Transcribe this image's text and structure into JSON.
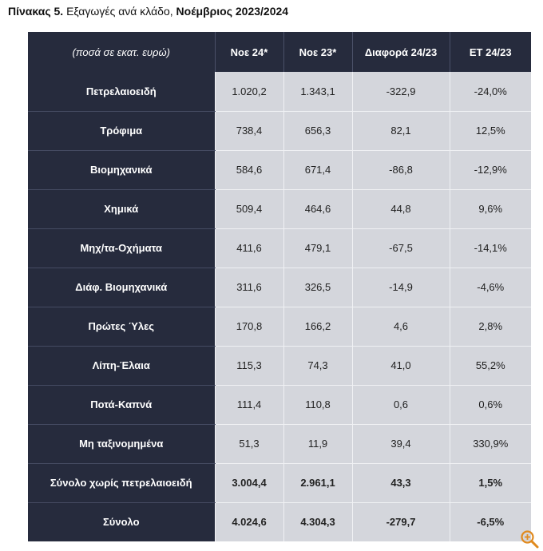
{
  "caption": {
    "prefix": "Πίνακας 5.",
    "text": " Εξαγωγές ανά κλάδο, ",
    "period": "Νοέμβριος 2023/2024"
  },
  "table": {
    "headers": [
      "(ποσά σε εκατ. ευρώ)",
      "Νοε 24*",
      "Νοε 23*",
      "Διαφορά 24/23",
      "ΕΤ 24/23"
    ],
    "rows": [
      {
        "label": "Πετρελαιοειδή",
        "cells": [
          "1.020,2",
          "1.343,1",
          "-322,9",
          "-24,0%"
        ]
      },
      {
        "label": "Τρόφιμα",
        "cells": [
          "738,4",
          "656,3",
          "82,1",
          "12,5%"
        ]
      },
      {
        "label": "Βιομηχανικά",
        "cells": [
          "584,6",
          "671,4",
          "-86,8",
          "-12,9%"
        ]
      },
      {
        "label": "Χημικά",
        "cells": [
          "509,4",
          "464,6",
          "44,8",
          "9,6%"
        ]
      },
      {
        "label": "Μηχ/τα-Οχήματα",
        "cells": [
          "411,6",
          "479,1",
          "-67,5",
          "-14,1%"
        ]
      },
      {
        "label": "Διάφ. Βιομηχανικά",
        "cells": [
          "311,6",
          "326,5",
          "-14,9",
          "-4,6%"
        ]
      },
      {
        "label": "Πρώτες Ύλες",
        "cells": [
          "170,8",
          "166,2",
          "4,6",
          "2,8%"
        ]
      },
      {
        "label": "Λίπη-Έλαια",
        "cells": [
          "115,3",
          "74,3",
          "41,0",
          "55,2%"
        ]
      },
      {
        "label": "Ποτά-Καπνά",
        "cells": [
          "111,4",
          "110,8",
          "0,6",
          "0,6%"
        ]
      },
      {
        "label": "Μη ταξινομημένα",
        "cells": [
          "51,3",
          "11,9",
          "39,4",
          "330,9%"
        ]
      },
      {
        "label": "Σύνολο χωρίς πετρελαιοειδή",
        "cells": [
          "3.004,4",
          "2.961,1",
          "43,3",
          "1,5%"
        ]
      },
      {
        "label": "Σύνολο",
        "cells": [
          "4.024,6",
          "4.304,3",
          "-279,7",
          "-6,5%"
        ]
      }
    ]
  },
  "icons": {
    "zoom": "zoom-in-icon",
    "zoom_color": "#e08a1e"
  }
}
